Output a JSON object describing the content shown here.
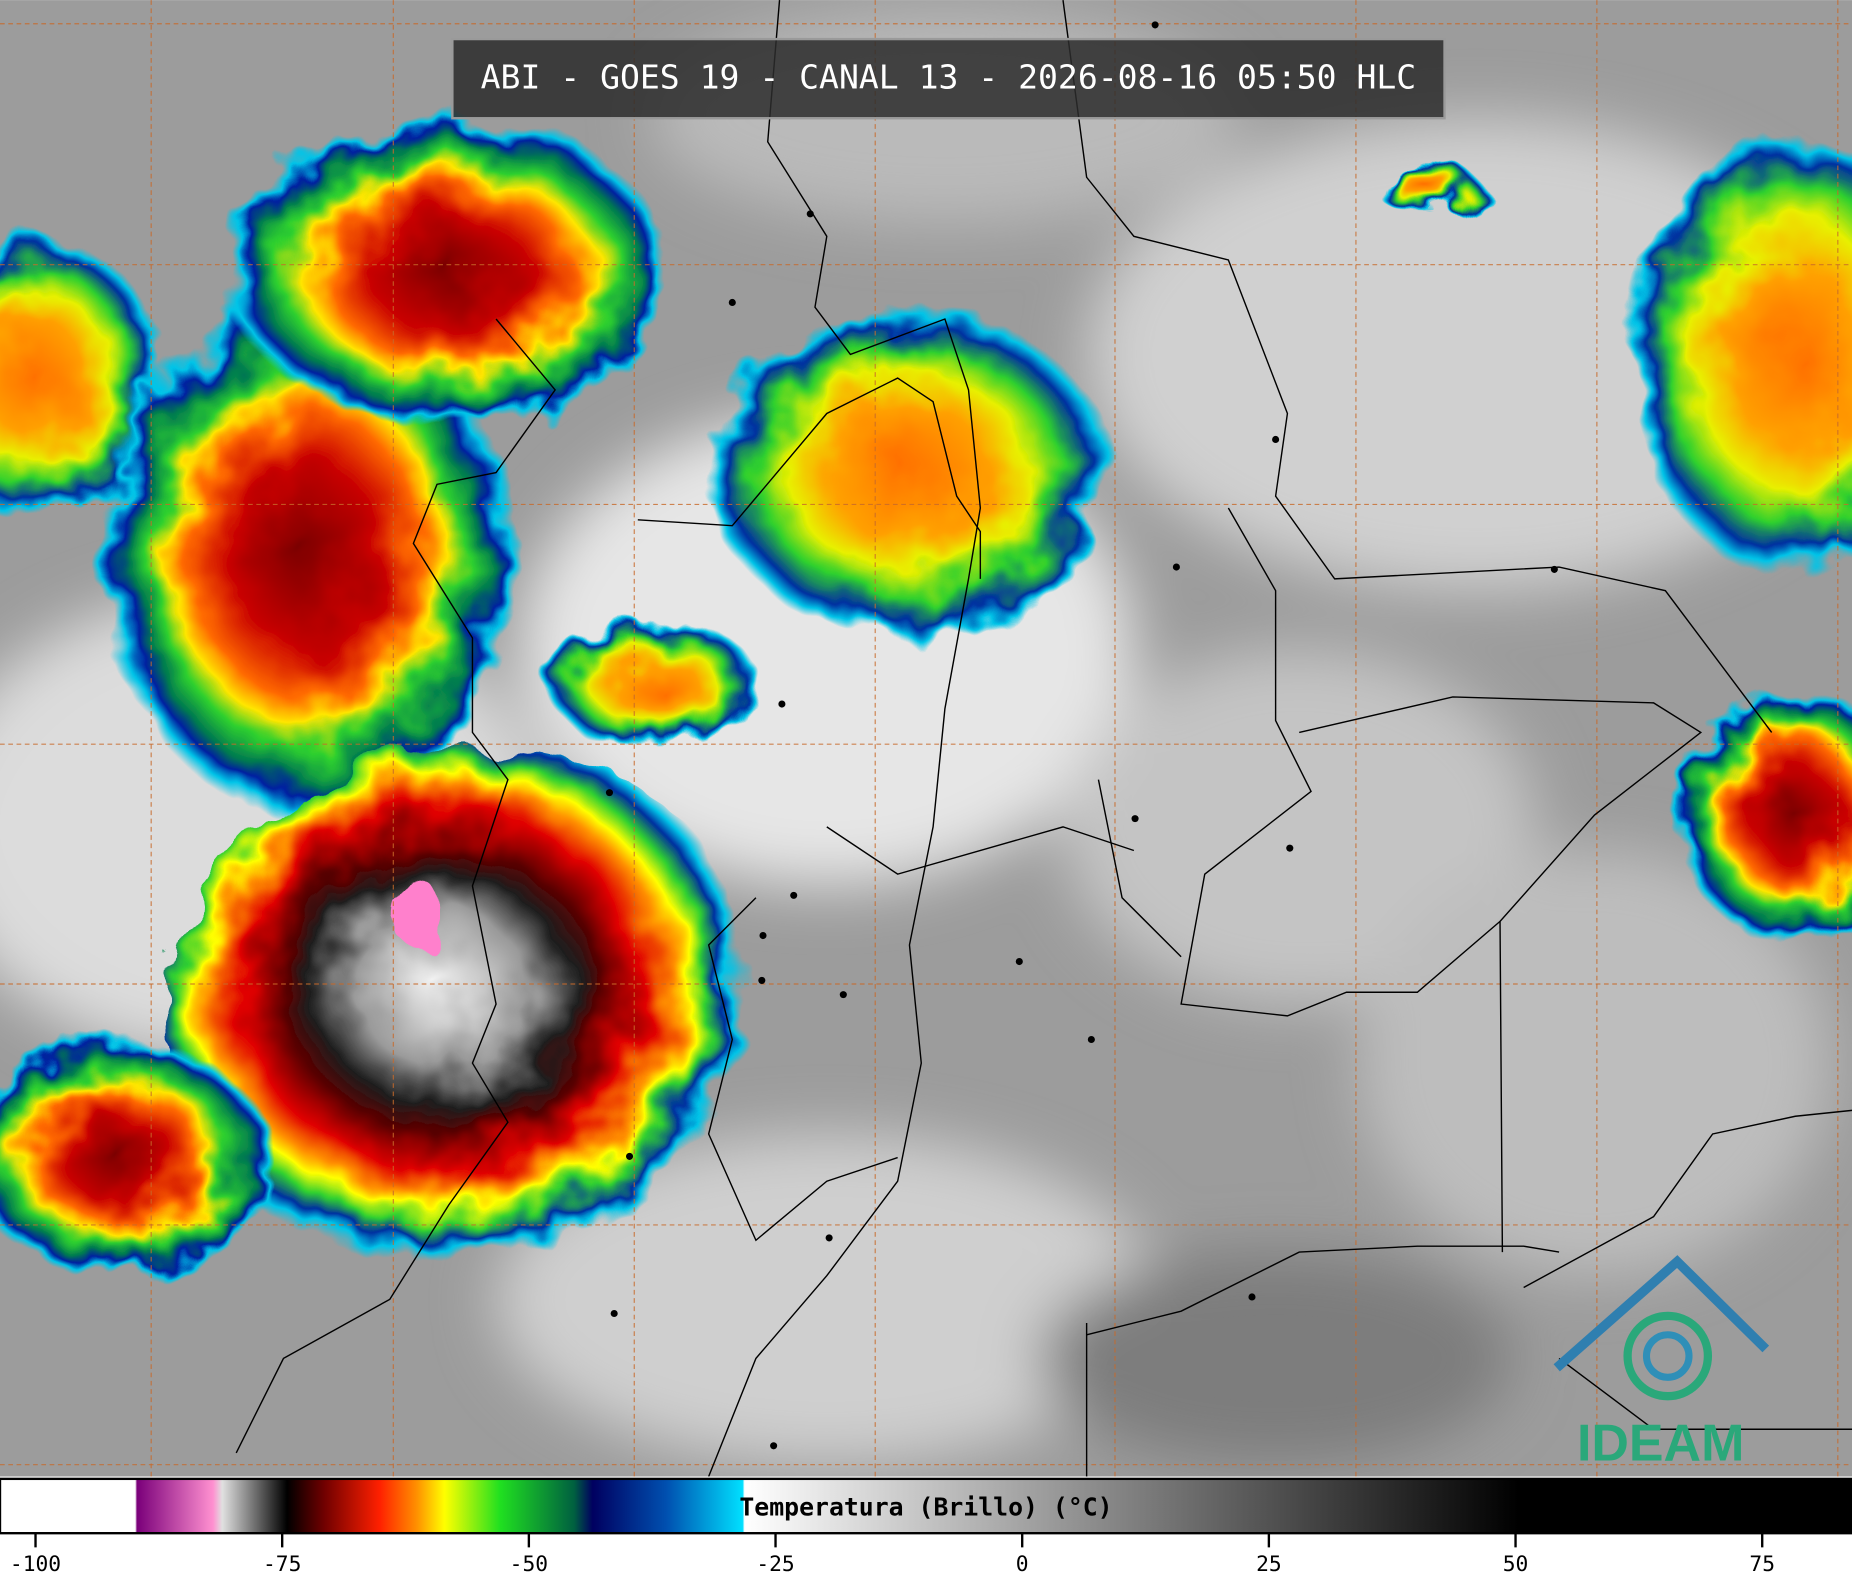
{
  "header": {
    "title": "ABI - GOES 19 - CANAL 13 - 2026-08-16 05:50 HLC"
  },
  "colorbar": {
    "label": "Temperatura (Brillo) (°C)",
    "xlim": [
      -103.6,
      84.1
    ],
    "ticks": [
      -100,
      -75,
      -50,
      -25,
      0,
      25,
      50,
      75
    ]
  },
  "logo": {
    "text": "IDEAM"
  }
}
